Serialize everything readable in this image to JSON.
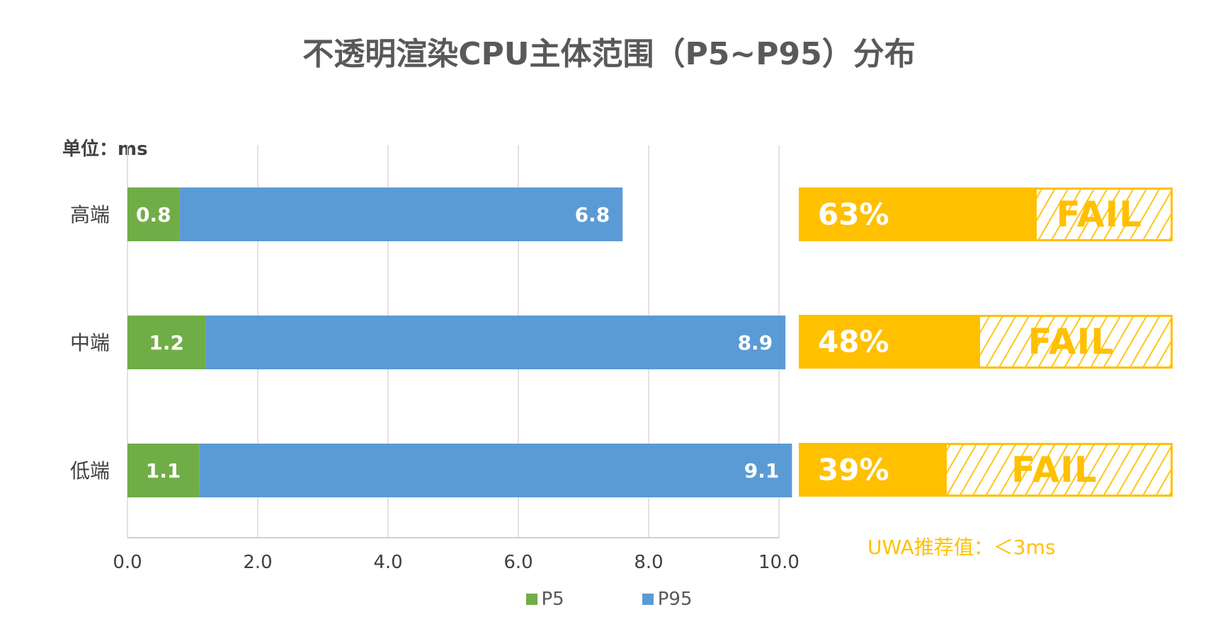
{
  "title": "不透明渲染CPU主体范围（P5~P95）分布",
  "unit_label": "单位：ms",
  "chart_data": {
    "type": "bar",
    "orientation": "horizontal",
    "stacked": true,
    "categories": [
      "高端",
      "中端",
      "低端"
    ],
    "series": [
      {
        "name": "P5",
        "values": [
          0.8,
          1.2,
          1.1
        ],
        "color": "#70AD47"
      },
      {
        "name": "P95",
        "values": [
          6.8,
          8.9,
          9.1
        ],
        "color": "#5B9BD5"
      }
    ],
    "xlim": [
      0,
      10
    ],
    "xticks": [
      "0.0",
      "2.0",
      "4.0",
      "6.0",
      "8.0",
      "10.0"
    ],
    "grid": true,
    "legend_position": "bottom"
  },
  "fail_panel": {
    "items": [
      {
        "percent": "63%",
        "status": "FAIL",
        "fraction": 0.63
      },
      {
        "percent": "48%",
        "status": "FAIL",
        "fraction": 0.48
      },
      {
        "percent": "39%",
        "status": "FAIL",
        "fraction": 0.39
      }
    ],
    "recommendation": "UWA推荐值：＜3ms",
    "color": "#FFC000"
  }
}
